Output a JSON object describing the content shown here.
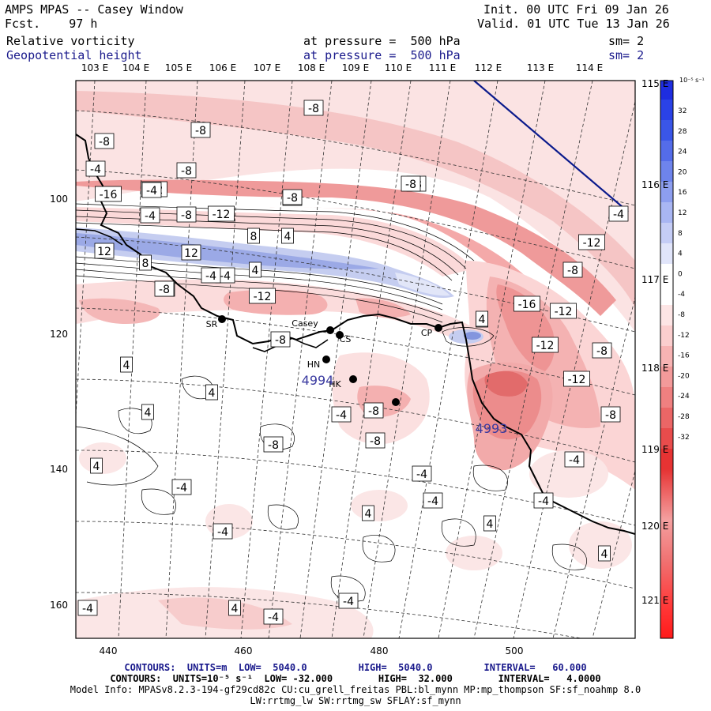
{
  "header": {
    "title": "AMPS MPAS -- Casey Window",
    "fcst": "Fcst.    97 h",
    "init": "Init. 00 UTC Fri 09 Jan 26",
    "valid": "Valid. 01 UTC Tue 13 Jan 26",
    "field1": {
      "name": "Relative vorticity",
      "level": "at pressure =  500 hPa",
      "sm": "sm= 2"
    },
    "field2": {
      "name": "Geopotential height",
      "level": "at pressure =  500 hPa",
      "sm": "sm= 2"
    }
  },
  "lon_top": [
    "103 E",
    "104 E",
    "105 E",
    "106 E",
    "107 E",
    "108 E",
    "109 E",
    "110 E",
    "111 E",
    "112 E",
    "113 E",
    "114 E"
  ],
  "lon_right": [
    "115 E",
    "116 E",
    "117 E",
    "118 E",
    "119 E",
    "120 E",
    "121 E"
  ],
  "x_ticks": [
    "440",
    "460",
    "480",
    "500"
  ],
  "y_ticks": [
    "100",
    "120",
    "140",
    "160"
  ],
  "colorbar": {
    "unit": "10⁻⁵ s⁻¹",
    "labels": [
      "32",
      "28",
      "24",
      "20",
      "16",
      "12",
      "8",
      "4",
      "0",
      "-4",
      "-8",
      "-12",
      "-16",
      "-20",
      "-24",
      "-28",
      "-32"
    ]
  },
  "stations": [
    "SR",
    "Casey",
    "CS",
    "CP",
    "HN",
    "HK"
  ],
  "height_labels": [
    "4994",
    "4993"
  ],
  "contour_labels": [
    "-8",
    "-8",
    "-8",
    "-4",
    "-8",
    "-16",
    "-12",
    "-4",
    "-8",
    "-12",
    "-8",
    "8",
    "4",
    "12",
    "12",
    "8",
    "-4",
    "4",
    "-8",
    "-12",
    "-8",
    "4",
    "-8",
    "4",
    "4",
    "4",
    "-4",
    "-8",
    "-8",
    "4",
    "-4",
    "-4",
    "4",
    "-4",
    "4",
    "-4",
    "4",
    "4",
    "-4",
    "-4",
    "-4",
    "-4",
    "-4",
    "-8",
    "-12",
    "-16",
    "-12",
    "-8",
    "-12",
    "-8",
    "-12",
    "-8",
    "-8",
    "-4",
    "-4",
    "-8",
    "4",
    "-4",
    "-8"
  ],
  "footer": {
    "line1": "CONTOURS:  UNITS=m  LOW=  5040.0         HIGH=  5040.0         INTERVAL=   60.000",
    "line2": "CONTOURS:  UNITS=10⁻⁵ s⁻¹  LOW= -32.000        HIGH=  32.000        INTERVAL=   4.0000",
    "line3": "Model Info: MPASv8.2.3-194-gf29cd82c CU:cu_grell_freitas PBL:bl_mynn MP:mp_thompson SF:sf_noahmp 8.0",
    "line4": "LW:rrtmg_lw SW:rrtmg_sw SFLAY:sf_mynn"
  },
  "colors": {
    "panel_border": "#000000",
    "height_line": "#0a1a8c",
    "coast": "#000000"
  }
}
